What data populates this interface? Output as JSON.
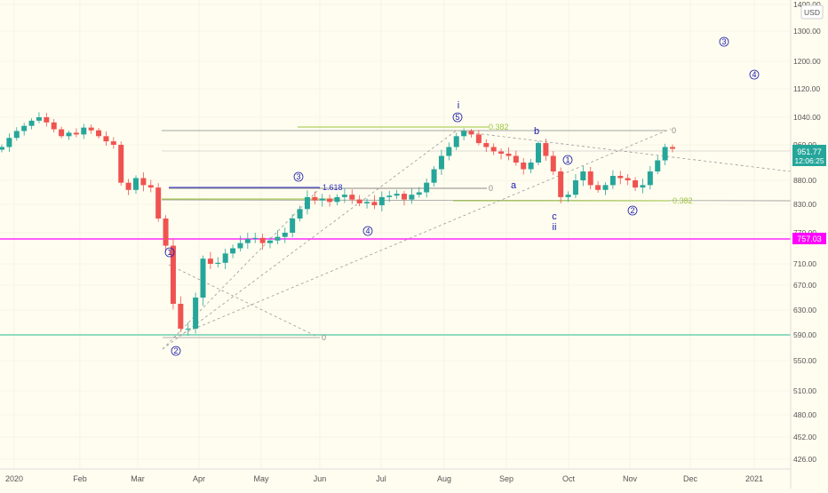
{
  "chart_data": {
    "type": "candlestick",
    "currency_label": "USD",
    "y_ticks": [
      "1400.00",
      "1300.00",
      "1200.00",
      "1120.00",
      "1040.00",
      "960.00",
      "880.00",
      "830.00",
      "770.00",
      "710.00",
      "670.00",
      "630.00",
      "590.00",
      "550.00",
      "510.00",
      "480.00",
      "452.00",
      "426.00"
    ],
    "x_ticks": [
      "2020",
      "Feb",
      "Mar",
      "Apr",
      "May",
      "Jun",
      "Jul",
      "Aug",
      "Sep",
      "Oct",
      "Nov",
      "Dec",
      "2021"
    ],
    "current_price": "951.77",
    "countdown": "12:06:25",
    "horizontal_level": "757.03",
    "colors": {
      "up": "#26a69a",
      "down": "#ef5350",
      "magenta": "#ff00ff",
      "teal": "#4fc7a3",
      "wave": "#1a1aa8",
      "fib": "#9bc53d"
    },
    "series": [
      955,
      980,
      1000,
      1015,
      1030,
      1040,
      1025,
      1005,
      985,
      995,
      990,
      1010,
      1002,
      985,
      970,
      960,
      875,
      860,
      885,
      870,
      865,
      800,
      745,
      640,
      600,
      600,
      650,
      720,
      710,
      712,
      730,
      740,
      750,
      758,
      760,
      750,
      755,
      762,
      770,
      800,
      820,
      845,
      838,
      842,
      835,
      845,
      850,
      840,
      832,
      835,
      828,
      845,
      848,
      852,
      840,
      850,
      855,
      875,
      905,
      935,
      955,
      985,
      1000,
      990,
      965,
      955,
      945,
      940,
      935,
      920,
      905,
      920,
      965,
      935,
      900,
      845,
      850,
      880,
      900,
      870,
      860,
      870,
      890,
      885,
      880,
      865,
      870,
      900,
      925,
      955,
      951
    ]
  },
  "annotations": {
    "wave_labels": {
      "w1_early": "1",
      "w2_early": "2",
      "w3_mid": "3",
      "w4_mid": "4",
      "w5_top": "5",
      "i": "i",
      "ii": "ii",
      "a": "a",
      "b": "b",
      "c": "c",
      "w1_late": "1",
      "w2_late": "2",
      "w3_future": "3",
      "w4_future": "4"
    },
    "fib_labels": {
      "fib_1618": "1.618",
      "fib_0382_top": "0.382",
      "fib_0382_low": "0.382",
      "zero_a": "0",
      "zero_b": "0",
      "zero_c": "0"
    }
  }
}
